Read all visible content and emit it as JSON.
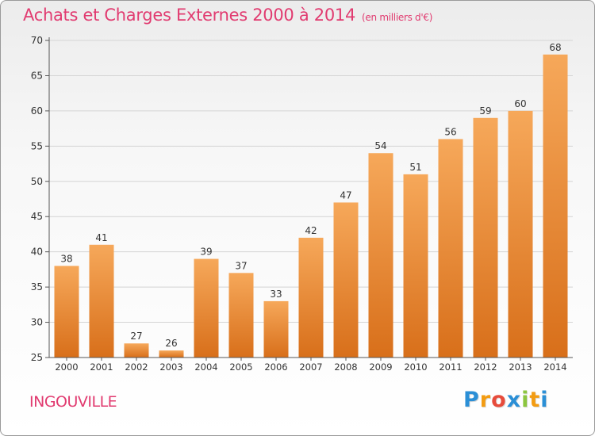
{
  "header": {
    "title": "Achats et Charges Externes 2000 à 2014",
    "unit": "(en milliers d'€)"
  },
  "commune": "INGOUVILLE",
  "logo": {
    "text": "Proxiti",
    "letters": [
      "P",
      "r",
      "o",
      "x",
      "i",
      "t",
      "i"
    ],
    "colors": [
      "#2b8fd6",
      "#f39c12",
      "#e74c3c",
      "#2b8fd6",
      "#8cc63f",
      "#f39c12",
      "#2b8fd6"
    ]
  },
  "colors": {
    "accent": "#e13b70",
    "bar_light": "#f6a85a",
    "bar_dark": "#d86f1a",
    "grid": "#d4d4d4"
  },
  "chart_data": {
    "type": "bar",
    "categories": [
      "2000",
      "2001",
      "2002",
      "2003",
      "2004",
      "2005",
      "2006",
      "2007",
      "2008",
      "2009",
      "2010",
      "2011",
      "2012",
      "2013",
      "2014"
    ],
    "values": [
      38,
      41,
      27,
      26,
      39,
      37,
      33,
      42,
      47,
      54,
      51,
      56,
      59,
      60,
      68
    ],
    "ylim": [
      25,
      70
    ],
    "yticks": [
      25,
      30,
      35,
      40,
      45,
      50,
      55,
      60,
      65,
      70
    ],
    "grid": true,
    "data_labels": true
  }
}
